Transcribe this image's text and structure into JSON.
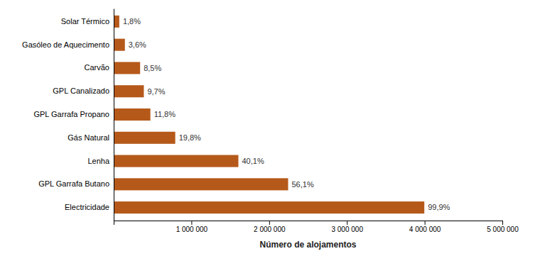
{
  "chart_data": {
    "type": "bar",
    "orientation": "horizontal",
    "categories": [
      "Electricidade",
      "GPL Garrafa Butano",
      "Lenha",
      "Gás Natural",
      "GPL Garrafa Propano",
      "GPL Canalizado",
      "Carvão",
      "Gasóleo de Aquecimento",
      "Solar Térmico"
    ],
    "values": [
      3996000,
      2244000,
      1604000,
      792000,
      472000,
      388000,
      340000,
      144000,
      72000
    ],
    "percentages": [
      99.9,
      56.1,
      40.1,
      19.8,
      11.8,
      9.7,
      8.5,
      3.6,
      1.8
    ],
    "percentage_labels": [
      "99,9%",
      "56,1%",
      "40,1%",
      "19,8%",
      "11,8%",
      "9,7%",
      "8,5%",
      "3,6%",
      "1,8%"
    ],
    "color": "#b5591a",
    "xlabel": "Número de alojamentos",
    "xlim": [
      0,
      5000000
    ],
    "xticks": [
      {
        "value": 0,
        "label": null
      },
      {
        "value": 1000000,
        "label": "1 000 000"
      },
      {
        "value": 2000000,
        "label": "2 000 000"
      },
      {
        "value": 3000000,
        "label": "3 000 000"
      },
      {
        "value": 4000000,
        "label": "4 000 000"
      },
      {
        "value": 5000000,
        "label": "5 000 000"
      }
    ],
    "grid": false
  }
}
